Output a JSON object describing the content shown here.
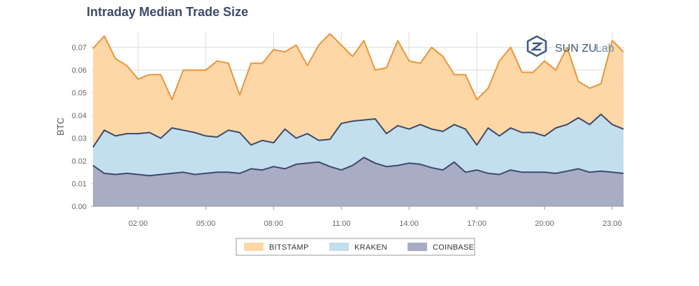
{
  "chart_data": {
    "type": "area",
    "title": "Intraday Median Trade Size",
    "ylabel": "BTC",
    "xlabel": "",
    "ylim": [
      0,
      0.077
    ],
    "yticks": [
      "0.00",
      "0.01",
      "0.02",
      "0.03",
      "0.04",
      "0.05",
      "0.06",
      "0.07"
    ],
    "xticks": [
      "02:00",
      "05:00",
      "08:00",
      "11:00",
      "14:00",
      "17:00",
      "20:00",
      "23:00"
    ],
    "x": [
      "00:00",
      "00:30",
      "01:00",
      "01:30",
      "02:00",
      "02:30",
      "03:00",
      "03:30",
      "04:00",
      "04:30",
      "05:00",
      "05:30",
      "06:00",
      "06:30",
      "07:00",
      "07:30",
      "08:00",
      "08:30",
      "09:00",
      "09:30",
      "10:00",
      "10:30",
      "11:00",
      "11:30",
      "12:00",
      "12:30",
      "13:00",
      "13:30",
      "14:00",
      "14:30",
      "15:00",
      "15:30",
      "16:00",
      "16:30",
      "17:00",
      "17:30",
      "18:00",
      "18:30",
      "19:00",
      "19:30",
      "20:00",
      "20:30",
      "21:00",
      "21:30",
      "22:00",
      "22:30",
      "23:00",
      "23:30"
    ],
    "grid": true,
    "legend_position": "bottom",
    "series": [
      {
        "name": "COINBASE",
        "color": "#a8acc4",
        "line_color": "#3d4a6b",
        "values": [
          0.018,
          0.0145,
          0.014,
          0.0145,
          0.014,
          0.0135,
          0.014,
          0.0145,
          0.015,
          0.014,
          0.0145,
          0.015,
          0.015,
          0.0145,
          0.0165,
          0.016,
          0.0175,
          0.0165,
          0.0185,
          0.019,
          0.0195,
          0.0175,
          0.016,
          0.018,
          0.0215,
          0.019,
          0.0175,
          0.018,
          0.019,
          0.0185,
          0.017,
          0.016,
          0.0195,
          0.015,
          0.016,
          0.0145,
          0.014,
          0.016,
          0.015,
          0.015,
          0.015,
          0.0145,
          0.0155,
          0.0165,
          0.015,
          0.0155,
          0.015,
          0.0145
        ]
      },
      {
        "name": "KRAKEN",
        "color": "#c3dfee",
        "line_color": "#3d4a6b",
        "values": [
          0.026,
          0.0335,
          0.031,
          0.032,
          0.032,
          0.0325,
          0.03,
          0.0345,
          0.0335,
          0.0325,
          0.031,
          0.0305,
          0.0335,
          0.0325,
          0.027,
          0.029,
          0.028,
          0.034,
          0.03,
          0.032,
          0.029,
          0.0295,
          0.0365,
          0.0375,
          0.038,
          0.0385,
          0.032,
          0.0355,
          0.034,
          0.036,
          0.034,
          0.033,
          0.036,
          0.034,
          0.027,
          0.0345,
          0.031,
          0.0345,
          0.0325,
          0.0325,
          0.031,
          0.0345,
          0.036,
          0.039,
          0.036,
          0.0405,
          0.036,
          0.034
        ]
      },
      {
        "name": "BITSTAMP",
        "color": "#fed7a6",
        "line_color": "#e8963a",
        "values": [
          0.0695,
          0.075,
          0.065,
          0.062,
          0.056,
          0.058,
          0.058,
          0.047,
          0.06,
          0.06,
          0.06,
          0.064,
          0.063,
          0.049,
          0.063,
          0.063,
          0.069,
          0.068,
          0.071,
          0.062,
          0.071,
          0.076,
          0.071,
          0.066,
          0.073,
          0.06,
          0.061,
          0.073,
          0.064,
          0.063,
          0.07,
          0.066,
          0.058,
          0.058,
          0.047,
          0.052,
          0.064,
          0.07,
          0.059,
          0.059,
          0.064,
          0.06,
          0.07,
          0.055,
          0.052,
          0.054,
          0.073,
          0.068
        ]
      }
    ]
  },
  "legend": [
    "BITSTAMP",
    "KRAKEN",
    "COINBASE"
  ],
  "logo": {
    "text_main": "SUN ZU",
    "text_light": "Lab"
  }
}
